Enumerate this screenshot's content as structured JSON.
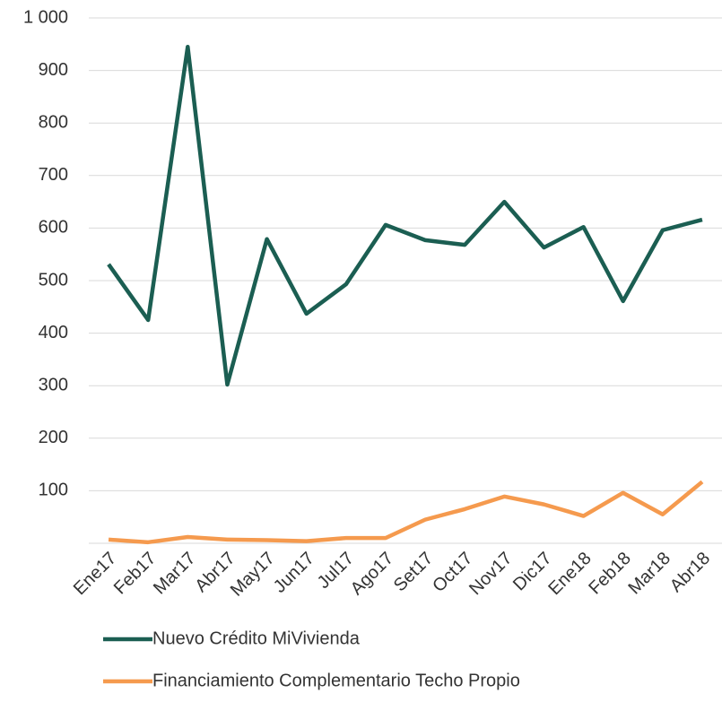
{
  "chart_data": {
    "type": "line",
    "categories": [
      "Ene17",
      "Feb17",
      "Mar17",
      "Abr17",
      "May17",
      "Jun17",
      "Jul17",
      "Ago17",
      "Set17",
      "Oct17",
      "Nov17",
      "Dic17",
      "Ene18",
      "Feb18",
      "Mar18",
      "Abr18"
    ],
    "series": [
      {
        "name": "Nuevo Crédito MiVivienda",
        "color": "#1b5e52",
        "values": [
          531,
          425,
          945,
          302,
          579,
          437,
          493,
          606,
          577,
          568,
          650,
          563,
          602,
          461,
          596,
          616
        ]
      },
      {
        "name": "Financiamiento Complementario Techo Propio",
        "color": "#f59a4e",
        "values": [
          7,
          2,
          12,
          7,
          6,
          4,
          10,
          10,
          45,
          65,
          89,
          74,
          52,
          96,
          55,
          117
        ]
      }
    ],
    "ylim": [
      0,
      1000
    ],
    "yticks": [
      100,
      200,
      300,
      400,
      500,
      600,
      700,
      800,
      900,
      {
        "value": 1000,
        "label": "1 000"
      }
    ],
    "grid": true,
    "legend": "bottom"
  }
}
